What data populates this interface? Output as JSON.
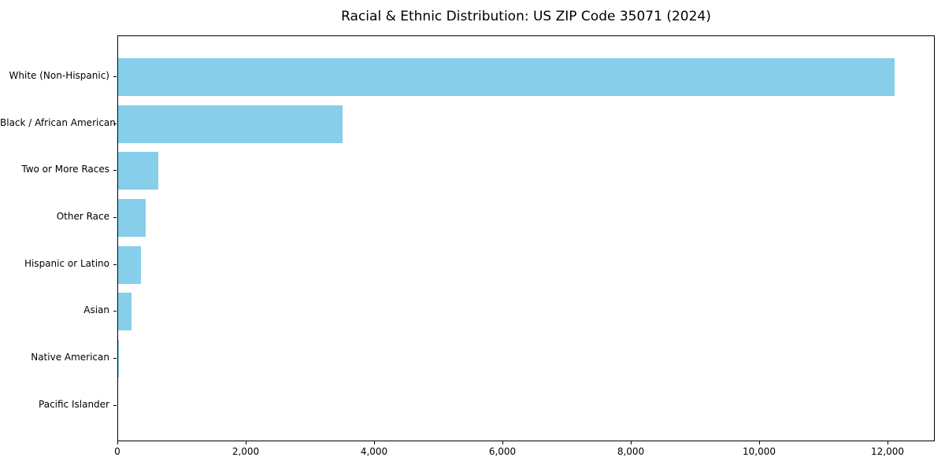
{
  "chart_data": {
    "type": "bar",
    "orientation": "horizontal",
    "title": "Racial & Ethnic Distribution: US ZIP Code 35071 (2024)",
    "categories": [
      "White (Non-Hispanic)",
      "Black / African American",
      "Two or More Races",
      "Other Race",
      "Hispanic or Latino",
      "Asian",
      "Native American",
      "Pacific Islander"
    ],
    "values": [
      12100,
      3500,
      620,
      430,
      360,
      210,
      15,
      0
    ],
    "xlabel": "",
    "ylabel": "",
    "xlim": [
      0,
      12736
    ],
    "xticks": {
      "values": [
        0,
        2000,
        4000,
        6000,
        8000,
        10000,
        12000
      ],
      "labels": [
        "0",
        "2,000",
        "4,000",
        "6,000",
        "8,000",
        "10,000",
        "12,000"
      ]
    },
    "bar_color": "#87CEEB",
    "background_color": "#FFFFFF",
    "axis_color": "#000000",
    "grid": false,
    "legend": null
  }
}
